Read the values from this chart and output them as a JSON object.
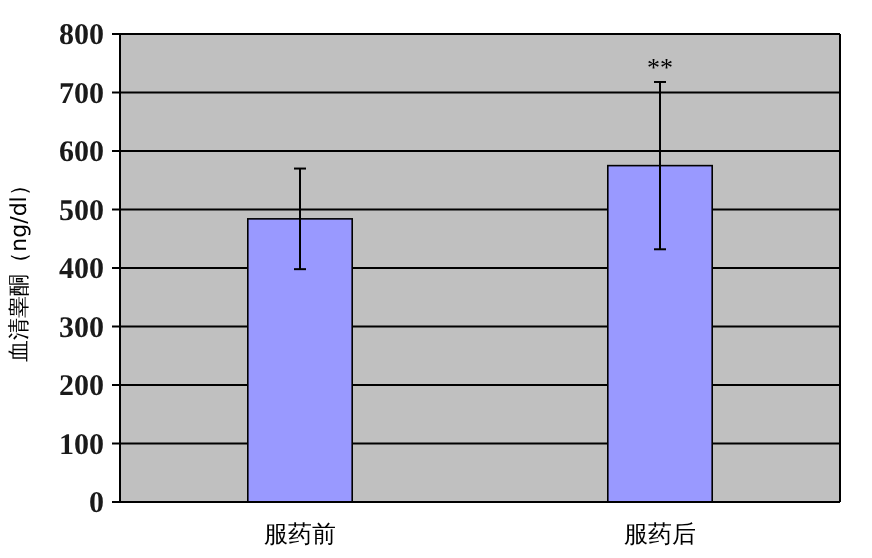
{
  "chart_data": {
    "type": "bar",
    "ylabel": "血清睾酮（ng/dl）",
    "categories": [
      "服药前",
      "服药后"
    ],
    "values": [
      484,
      575
    ],
    "errors": [
      86,
      143
    ],
    "color": "#9999ff",
    "ylim": [
      0,
      800
    ],
    "yticks": [
      0,
      100,
      200,
      300,
      400,
      500,
      600,
      700,
      800
    ],
    "grid": "y",
    "annotations": [
      {
        "text": "**",
        "x": "服药后",
        "y": 718
      }
    ]
  }
}
